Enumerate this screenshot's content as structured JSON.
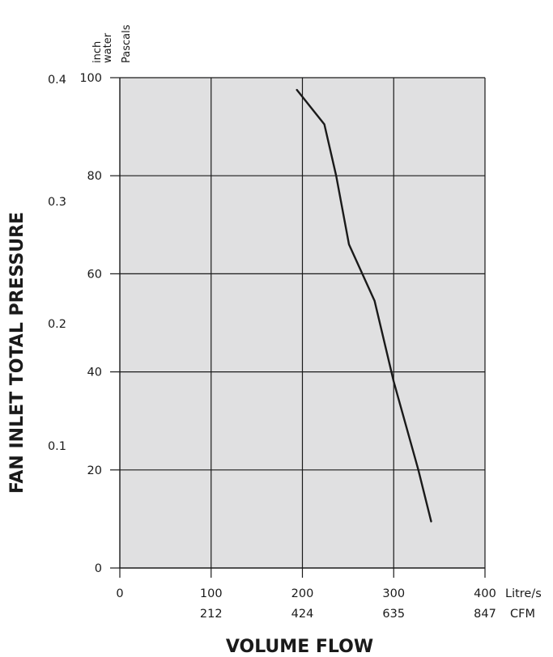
{
  "chart_data": {
    "type": "line",
    "xlabel": "VOLUME FLOW",
    "ylabel": "FAN INLET TOTAL PRESSURE",
    "x_unit_primary": "Litre/s",
    "x_unit_secondary": "CFM",
    "y_unit_primary": "Pascals",
    "y_unit_secondary_line1": "inch",
    "y_unit_secondary_line2": "water",
    "xlim": [
      0,
      400
    ],
    "ylim": [
      0,
      100
    ],
    "x_ticks": [
      "0",
      "100",
      "200",
      "300",
      "400"
    ],
    "x_ticks_secondary": [
      "212",
      "424",
      "635",
      "847"
    ],
    "y_ticks": [
      "0",
      "20",
      "40",
      "60",
      "80",
      "100"
    ],
    "y_ticks_secondary": [
      "0.1",
      "0.2",
      "0.3",
      "0.4"
    ],
    "grid": true,
    "colors": {
      "plot_background": "#e0e0e1",
      "line": "#1a1a1a",
      "grid": "#1a1a1a"
    },
    "series": [
      {
        "x": [
          194,
          224,
          237,
          251,
          279,
          300,
          327,
          341
        ],
        "y": [
          97.5,
          90.5,
          80,
          66,
          54.5,
          38,
          20,
          9.5
        ]
      }
    ]
  }
}
